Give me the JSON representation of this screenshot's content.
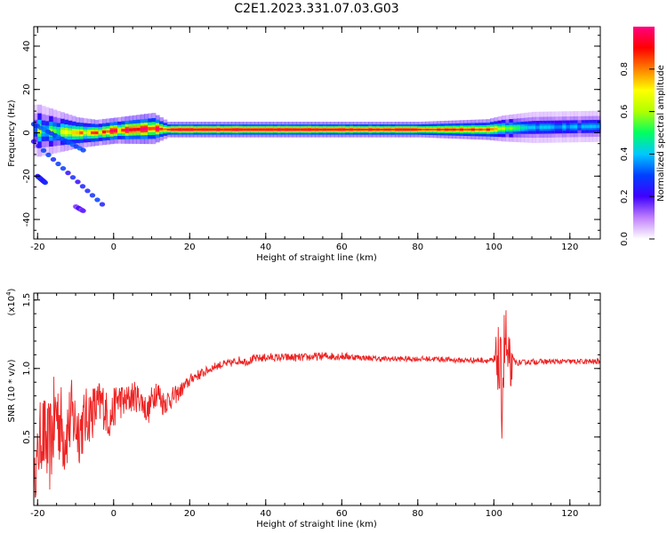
{
  "figure": {
    "title": "C2E1.2023.331.07.03.G03"
  },
  "chart_data": [
    {
      "type": "heatmap",
      "panel": "top",
      "title": "",
      "xlabel": "Height of straight line (km)",
      "ylabel": "Frequency (Hz)",
      "xlim": [
        -21,
        128
      ],
      "ylim": [
        -49,
        49
      ],
      "xticks": [
        -20,
        0,
        20,
        40,
        60,
        80,
        100,
        120
      ],
      "yticks": [
        -40,
        -20,
        0,
        20,
        40
      ],
      "colorbar": {
        "label": "Normalized spectral amplitude",
        "range": [
          0,
          1
        ],
        "ticks": [
          0.0,
          0.2,
          0.4,
          0.6,
          0.8
        ],
        "colormap": [
          "#ffffff",
          "#c080ff",
          "#4000ff",
          "#0040ff",
          "#00c8ff",
          "#00ff60",
          "#b0ff00",
          "#ffff00",
          "#ff8000",
          "#ff0000",
          "#ff0080"
        ]
      },
      "main_band": [
        {
          "x": -20,
          "freq": 1.0,
          "halfwidth": 5.0,
          "amp": 0.5
        },
        {
          "x": -15,
          "freq": 0.5,
          "halfwidth": 4.0,
          "amp": 0.55
        },
        {
          "x": -10,
          "freq": 0.0,
          "halfwidth": 3.0,
          "amp": 0.7
        },
        {
          "x": -5,
          "freq": 0.0,
          "halfwidth": 2.5,
          "amp": 0.8
        },
        {
          "x": 0,
          "freq": 1.0,
          "halfwidth": 2.5,
          "amp": 0.85
        },
        {
          "x": 10,
          "freq": 2.0,
          "halfwidth": 3.0,
          "amp": 0.9
        },
        {
          "x": 14,
          "freq": 1.5,
          "halfwidth": 1.5,
          "amp": 0.95
        },
        {
          "x": 40,
          "freq": 1.5,
          "halfwidth": 1.5,
          "amp": 0.95
        },
        {
          "x": 80,
          "freq": 1.5,
          "halfwidth": 1.5,
          "amp": 0.9
        },
        {
          "x": 98,
          "freq": 1.5,
          "halfwidth": 2.0,
          "amp": 0.85
        },
        {
          "x": 102,
          "freq": 2.0,
          "halfwidth": 2.5,
          "amp": 0.6
        },
        {
          "x": 110,
          "freq": 2.5,
          "halfwidth": 3.0,
          "amp": 0.4
        },
        {
          "x": 128,
          "freq": 3.0,
          "halfwidth": 3.0,
          "amp": 0.35
        }
      ],
      "harmonic_traces": [
        {
          "from": [
            -21,
            4
          ],
          "to": [
            -8,
            -8
          ],
          "amp": 0.25
        },
        {
          "from": [
            -21,
            -4
          ],
          "to": [
            -3,
            -33
          ],
          "amp": 0.2
        },
        {
          "from": [
            -20,
            -20
          ],
          "to": [
            -18,
            -23
          ],
          "amp": 0.2
        },
        {
          "from": [
            -10,
            -34
          ],
          "to": [
            -8,
            -36
          ],
          "amp": 0.1
        }
      ]
    },
    {
      "type": "line",
      "panel": "bottom",
      "title": "",
      "xlabel": "Height of straight line (km)",
      "ylabel": "SNR (10 * v/v)",
      "y_multiplier_label": "(x10",
      "y_multiplier_exp": "4",
      "xlim": [
        -21,
        128
      ],
      "ylim": [
        0.0,
        1.55
      ],
      "xticks": [
        -20,
        0,
        20,
        40,
        60,
        80,
        100,
        120
      ],
      "yticks": [
        0.5,
        1.0,
        1.5
      ],
      "series": [
        {
          "color": "#ee2222",
          "x": [
            -21,
            -19,
            -17,
            -15,
            -13,
            -11,
            -9,
            -7,
            -5,
            -3,
            -1,
            1,
            3,
            5,
            7,
            9,
            11,
            13,
            15,
            17,
            19,
            21,
            23,
            25,
            27,
            29,
            31,
            33,
            35,
            37,
            40,
            45,
            50,
            55,
            60,
            65,
            70,
            75,
            80,
            85,
            90,
            95,
            98,
            100,
            101,
            102,
            103,
            104,
            105,
            106,
            110,
            115,
            120,
            125,
            128
          ],
          "y": [
            0.15,
            0.55,
            0.4,
            0.7,
            0.5,
            0.65,
            0.55,
            0.65,
            0.7,
            0.75,
            0.62,
            0.78,
            0.75,
            0.8,
            0.78,
            0.68,
            0.85,
            0.75,
            0.78,
            0.82,
            0.88,
            0.94,
            0.96,
            0.99,
            1.02,
            1.03,
            1.04,
            1.06,
            1.05,
            1.07,
            1.08,
            1.08,
            1.08,
            1.09,
            1.09,
            1.08,
            1.07,
            1.07,
            1.07,
            1.07,
            1.06,
            1.06,
            1.06,
            1.05,
            1.1,
            0.8,
            1.25,
            0.9,
            1.06,
            1.04,
            1.05,
            1.05,
            1.05,
            1.05,
            1.05
          ],
          "noise_amplitude": [
            0.15,
            0.3,
            0.35,
            0.35,
            0.3,
            0.28,
            0.25,
            0.22,
            0.2,
            0.18,
            0.15,
            0.15,
            0.12,
            0.12,
            0.1,
            0.1,
            0.12,
            0.1,
            0.08,
            0.06,
            0.05,
            0.04,
            0.04,
            0.03,
            0.03,
            0.03,
            0.03,
            0.03,
            0.03,
            0.03,
            0.03,
            0.03,
            0.03,
            0.03,
            0.03,
            0.02,
            0.02,
            0.02,
            0.02,
            0.02,
            0.02,
            0.02,
            0.02,
            0.03,
            0.25,
            0.4,
            0.3,
            0.35,
            0.03,
            0.02,
            0.02,
            0.02,
            0.02,
            0.02,
            0.02
          ]
        }
      ]
    }
  ]
}
